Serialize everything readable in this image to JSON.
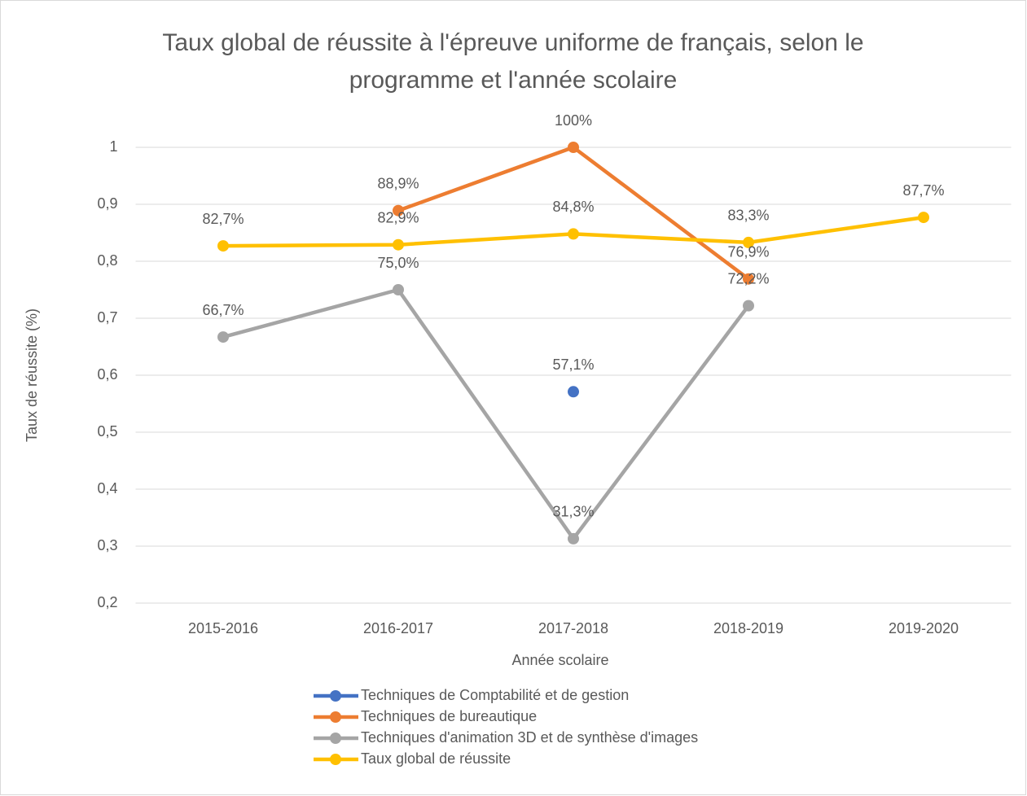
{
  "chart_data": {
    "type": "line",
    "title": "Taux global de réussite à l'épreuve uniforme de français, selon le programme et l'année scolaire",
    "x_label": "Année scolaire",
    "y_label": "Taux de réussite (%)",
    "categories": [
      "2015-2016",
      "2016-2017",
      "2017-2018",
      "2018-2019",
      "2019-2020"
    ],
    "ylim": [
      0.2,
      1
    ],
    "yticks": [
      {
        "value": 0.2,
        "label": "0,2"
      },
      {
        "value": 0.3,
        "label": "0,3"
      },
      {
        "value": 0.4,
        "label": "0,4"
      },
      {
        "value": 0.5,
        "label": "0,5"
      },
      {
        "value": 0.6,
        "label": "0,6"
      },
      {
        "value": 0.7,
        "label": "0,7"
      },
      {
        "value": 0.8,
        "label": "0,8"
      },
      {
        "value": 0.9,
        "label": "0,9"
      },
      1
    ],
    "grid": true,
    "legend": "bottom",
    "series": [
      {
        "name": "Techniques de Comptabilité et de gestion",
        "color": "#4472c4",
        "values": [
          null,
          null,
          0.571,
          null,
          null
        ],
        "value_labels": [
          null,
          null,
          "57,1%",
          null,
          null
        ]
      },
      {
        "name": "Techniques de bureautique",
        "color": "#ed7d31",
        "values": [
          null,
          0.889,
          1,
          0.769,
          null
        ],
        "value_labels": [
          null,
          "88,9%",
          "100%",
          "76,9%",
          null
        ]
      },
      {
        "name": "Techniques d'animation 3D et de synthèse d'images",
        "color": "#a5a5a5",
        "values": [
          0.667,
          0.75,
          0.313,
          0.722,
          null
        ],
        "value_labels": [
          "66,7%",
          "75,0%",
          "31,3%",
          "72,2%",
          null
        ]
      },
      {
        "name": "Taux global de réussite",
        "color": "#ffc000",
        "values": [
          0.827,
          0.829,
          0.848,
          0.833,
          0.877
        ],
        "value_labels": [
          "82,7%",
          "82,9%",
          "84,8%",
          "83,3%",
          "87,7%"
        ]
      }
    ]
  }
}
